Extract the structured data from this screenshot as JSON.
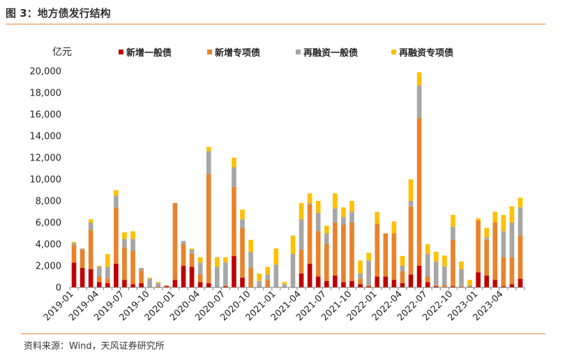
{
  "title": "图 3：地方债发行结构",
  "source": "资料来源：Wind，天风证券研究所",
  "chart_data": {
    "type": "bar",
    "stacked": true,
    "ylabel": "亿元",
    "ylim": [
      0,
      20000
    ],
    "yticks": [
      0,
      2000,
      4000,
      6000,
      8000,
      10000,
      12000,
      14000,
      16000,
      18000,
      20000
    ],
    "ytick_labels": [
      "0",
      "2,000",
      "4,000",
      "6,000",
      "8,000",
      "10,000",
      "12,000",
      "14,000",
      "16,000",
      "18,000",
      "20,000"
    ],
    "grid": false,
    "legend_position": "top",
    "x": [
      "2019-01",
      "2019-02",
      "2019-03",
      "2019-04",
      "2019-05",
      "2019-06",
      "2019-07",
      "2019-08",
      "2019-09",
      "2019-10",
      "2019-11",
      "2019-12",
      "2020-01",
      "2020-02",
      "2020-03",
      "2020-04",
      "2020-05",
      "2020-06",
      "2020-07",
      "2020-08",
      "2020-09",
      "2020-10",
      "2020-11",
      "2020-12",
      "2021-01",
      "2021-02",
      "2021-03",
      "2021-04",
      "2021-05",
      "2021-06",
      "2021-07",
      "2021-08",
      "2021-09",
      "2021-10",
      "2021-11",
      "2021-12",
      "2022-01",
      "2022-02",
      "2022-03",
      "2022-04",
      "2022-05",
      "2022-06",
      "2022-07",
      "2022-08",
      "2022-09",
      "2022-10",
      "2022-11",
      "2022-12",
      "2023-01",
      "2023-02",
      "2023-03",
      "2023-04",
      "2023-05",
      "2023-06"
    ],
    "x_tick_labels": [
      "2019-01",
      "2019-04",
      "2019-07",
      "2019-10",
      "2020-01",
      "2020-04",
      "2020-07",
      "2020-10",
      "2021-01",
      "2021-04",
      "2021-07",
      "2021-10",
      "2022-01",
      "2022-04",
      "2022-07",
      "2022-10",
      "2023-01",
      "2023-04"
    ],
    "series": [
      {
        "name": "新增一般债",
        "color": "#c00000",
        "values": [
          2300,
          1800,
          1700,
          500,
          400,
          2200,
          700,
          300,
          400,
          0,
          0,
          100,
          700,
          2000,
          1900,
          500,
          400,
          0,
          100,
          2900,
          900,
          0,
          0,
          0,
          0,
          0,
          0,
          1300,
          2200,
          1000,
          600,
          1100,
          500,
          600,
          300,
          100,
          1000,
          1000,
          700,
          400,
          1200,
          2000,
          500,
          100,
          50,
          100,
          0,
          0,
          1400,
          1100,
          700,
          100,
          300,
          800
        ]
      },
      {
        "name": "新增专项债",
        "color": "#e8832b",
        "values": [
          1600,
          1700,
          3600,
          500,
          400,
          5200,
          3000,
          3100,
          1200,
          0,
          100,
          100,
          7100,
          2000,
          1200,
          700,
          10100,
          0,
          100,
          6400,
          4600,
          1800,
          0,
          700,
          0,
          0,
          0,
          2200,
          5500,
          4200,
          3400,
          4900,
          5300,
          5400,
          500,
          100,
          4900,
          4000,
          4300,
          1100,
          6300,
          13700,
          500,
          100,
          200,
          4300,
          100,
          100,
          4800,
          3300,
          5300,
          2700,
          2500,
          4000
        ]
      },
      {
        "name": "再融资一般债",
        "color": "#a6a6a6",
        "values": [
          200,
          100,
          700,
          900,
          1100,
          1100,
          800,
          1100,
          200,
          800,
          300,
          0,
          0,
          300,
          400,
          1100,
          2100,
          1900,
          2100,
          1800,
          800,
          1500,
          600,
          500,
          2100,
          300,
          3100,
          2800,
          100,
          1700,
          1000,
          1300,
          700,
          1000,
          500,
          2300,
          0,
          0,
          0,
          500,
          500,
          3000,
          2100,
          2200,
          1700,
          1200,
          1600,
          100,
          0,
          200,
          0,
          2400,
          3200,
          2600
        ]
      },
      {
        "name": "再融资专项债",
        "color": "#ffc000",
        "values": [
          100,
          0,
          300,
          100,
          1200,
          500,
          600,
          700,
          0,
          100,
          100,
          0,
          0,
          0,
          100,
          500,
          400,
          900,
          500,
          900,
          900,
          1100,
          700,
          700,
          1500,
          200,
          1700,
          1500,
          900,
          1100,
          700,
          1400,
          900,
          1000,
          1200,
          700,
          1100,
          0,
          1100,
          900,
          2000,
          1200,
          900,
          900,
          1000,
          1100,
          700,
          500,
          200,
          900,
          1000,
          1500,
          1500,
          900
        ]
      }
    ]
  }
}
